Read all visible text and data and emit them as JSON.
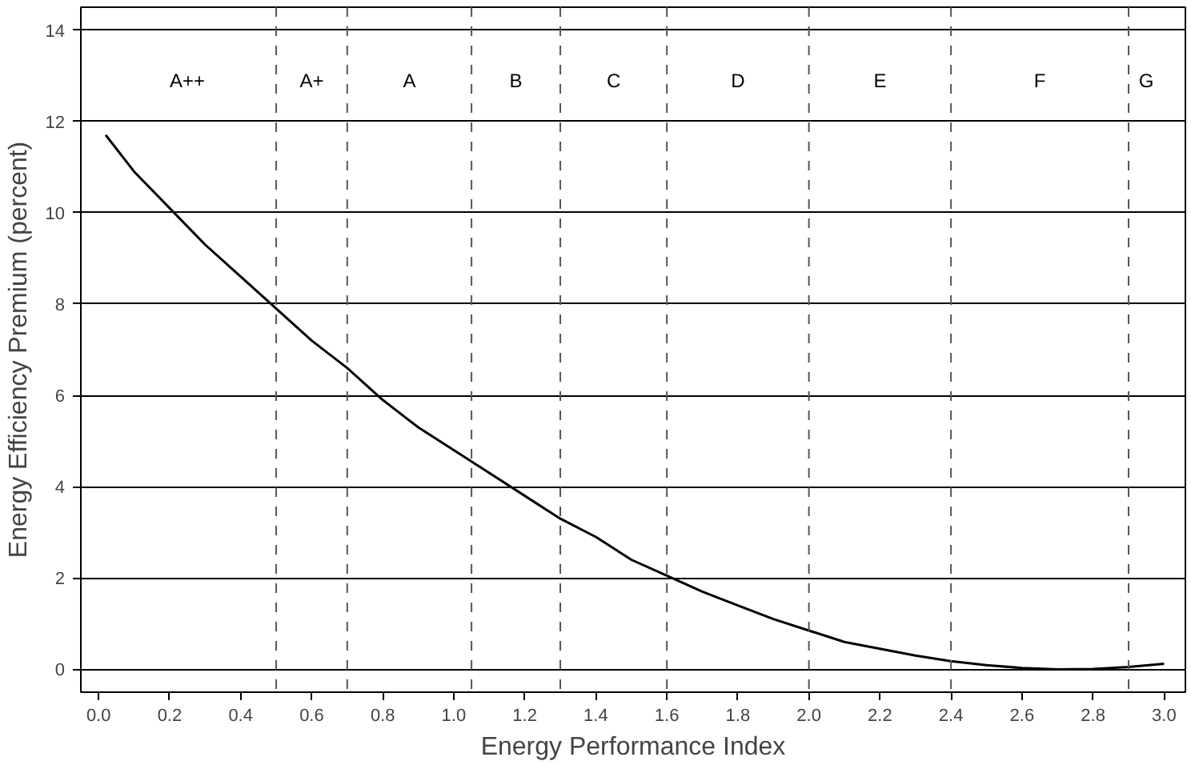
{
  "chart_data": {
    "type": "line",
    "xlabel": "Energy Performance Index",
    "ylabel": "Energy Efficiency Premium (percent)",
    "x": [
      0.02,
      0.1,
      0.2,
      0.3,
      0.4,
      0.5,
      0.6,
      0.7,
      0.8,
      0.9,
      1.0,
      1.1,
      1.2,
      1.3,
      1.4,
      1.5,
      1.6,
      1.7,
      1.8,
      1.9,
      2.0,
      2.1,
      2.2,
      2.3,
      2.4,
      2.5,
      2.6,
      2.7,
      2.8,
      2.9,
      3.0
    ],
    "series": [
      {
        "color": "#000000",
        "values": [
          11.7,
          10.9,
          10.1,
          9.3,
          8.6,
          7.9,
          7.2,
          6.6,
          5.9,
          5.3,
          4.8,
          4.3,
          3.8,
          3.3,
          2.9,
          2.4,
          2.05,
          1.7,
          1.4,
          1.1,
          0.85,
          0.6,
          0.45,
          0.3,
          0.18,
          0.09,
          0.03,
          0.0,
          0.01,
          0.05,
          0.12
        ]
      }
    ],
    "xlim": [
      -0.05,
      3.06
    ],
    "ylim": [
      -0.5,
      14.5
    ],
    "xticks": [
      {
        "value": 0,
        "label": "0.0"
      },
      {
        "value": 0.2,
        "label": "0.2"
      },
      {
        "value": 0.4,
        "label": "0.4"
      },
      {
        "value": 0.6,
        "label": "0.6"
      },
      {
        "value": 0.8,
        "label": "0.8"
      },
      {
        "value": 1,
        "label": "1.0"
      },
      {
        "value": 1.2,
        "label": "1.2"
      },
      {
        "value": 1.4,
        "label": "1.4"
      },
      {
        "value": 1.6,
        "label": "1.6"
      },
      {
        "value": 1.8,
        "label": "1.8"
      },
      {
        "value": 2,
        "label": "2.0"
      },
      {
        "value": 2.2,
        "label": "2.2"
      },
      {
        "value": 2.4,
        "label": "2.4"
      },
      {
        "value": 2.6,
        "label": "2.6"
      },
      {
        "value": 2.8,
        "label": "2.8"
      },
      {
        "value": 3,
        "label": "3.0"
      }
    ],
    "yticks": [
      0,
      2,
      4,
      6,
      8,
      10,
      12,
      14
    ],
    "grid": "y",
    "marker": "none",
    "line_style": "solid",
    "ref_lines": [
      {
        "axis": "x",
        "value": 0.5,
        "color": "#555555",
        "line_style": "dashed"
      },
      {
        "axis": "x",
        "value": 0.7,
        "color": "#555555",
        "line_style": "dashed"
      },
      {
        "axis": "x",
        "value": 1.05,
        "color": "#555555",
        "line_style": "dashed"
      },
      {
        "axis": "x",
        "value": 1.3,
        "color": "#555555",
        "line_style": "dashed"
      },
      {
        "axis": "x",
        "value": 1.6,
        "color": "#555555",
        "line_style": "dashed"
      },
      {
        "axis": "x",
        "value": 2.0,
        "color": "#555555",
        "line_style": "dashed"
      },
      {
        "axis": "x",
        "value": 2.4,
        "color": "#555555",
        "line_style": "dashed"
      },
      {
        "axis": "x",
        "value": 2.9,
        "color": "#555555",
        "line_style": "dashed"
      }
    ],
    "annotations": [
      "A++",
      "A+",
      "A",
      "B",
      "C",
      "D",
      "E",
      "F",
      "G"
    ]
  }
}
